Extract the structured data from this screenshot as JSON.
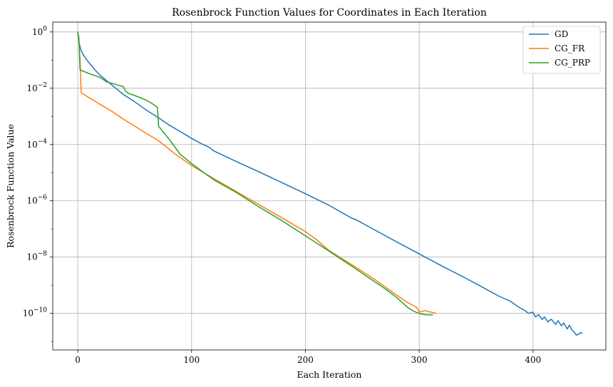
{
  "chart_data": {
    "type": "line",
    "title": "Rosenbrock Function Values for Coordinates in Each Iteration",
    "xlabel": "Each Iteration",
    "ylabel": "Rosenbrock Function Value",
    "xlim": [
      -22,
      464
    ],
    "ylim_exponent": [
      -11.3,
      0.35
    ],
    "yscale": "log",
    "grid": true,
    "legend_position": "top-right",
    "x_ticks": [
      {
        "value": 0,
        "label": "0"
      },
      {
        "value": 100,
        "label": "100"
      },
      {
        "value": 200,
        "label": "200"
      },
      {
        "value": 300,
        "label": "300"
      },
      {
        "value": 400,
        "label": "400"
      }
    ],
    "y_ticks": [
      {
        "exponent": 0,
        "base": "10",
        "sup": "0"
      },
      {
        "exponent": -2,
        "base": "10",
        "sup": "−2"
      },
      {
        "exponent": -4,
        "base": "10",
        "sup": "−4"
      },
      {
        "exponent": -6,
        "base": "10",
        "sup": "−6"
      },
      {
        "exponent": -8,
        "base": "10",
        "sup": "−8"
      },
      {
        "exponent": -10,
        "base": "10",
        "sup": "−10"
      }
    ],
    "series": [
      {
        "name": "GD",
        "color": "#1f77b4",
        "points": [
          [
            0,
            1.0
          ],
          [
            1,
            0.45
          ],
          [
            2,
            0.3
          ],
          [
            3,
            0.22
          ],
          [
            5,
            0.15
          ],
          [
            8,
            0.1
          ],
          [
            10,
            0.08
          ],
          [
            15,
            0.045
          ],
          [
            20,
            0.028
          ],
          [
            30,
            0.013
          ],
          [
            40,
            0.006
          ],
          [
            50,
            0.0033
          ],
          [
            60,
            0.0017
          ],
          [
            70,
            0.00095
          ],
          [
            80,
            0.0005
          ],
          [
            90,
            0.00029
          ],
          [
            100,
            0.000165
          ],
          [
            110,
            0.0001
          ],
          [
            115,
            8.2e-05
          ],
          [
            120,
            5.8e-05
          ],
          [
            140,
            2.4e-05
          ],
          [
            160,
            1.03e-05
          ],
          [
            180,
            4.3e-06
          ],
          [
            200,
            1.78e-06
          ],
          [
            220,
            7.2e-07
          ],
          [
            240,
            2.5e-07
          ],
          [
            245,
            2.08e-07
          ],
          [
            260,
            9.6e-08
          ],
          [
            280,
            3.5e-08
          ],
          [
            300,
            1.3e-08
          ],
          [
            320,
            4.8e-09
          ],
          [
            340,
            1.85e-09
          ],
          [
            360,
            6.8e-10
          ],
          [
            370,
            4.1e-10
          ],
          [
            380,
            2.7e-10
          ],
          [
            388,
            1.6e-10
          ],
          [
            393,
            1.25e-10
          ],
          [
            396,
            1e-10
          ],
          [
            400,
            1.1e-10
          ],
          [
            402,
            7.5e-11
          ],
          [
            405,
            9e-11
          ],
          [
            408,
            6e-11
          ],
          [
            410,
            7.5e-11
          ],
          [
            413,
            5e-11
          ],
          [
            416,
            6.2e-11
          ],
          [
            420,
            4e-11
          ],
          [
            422,
            5.5e-11
          ],
          [
            425,
            3.6e-11
          ],
          [
            427,
            4.6e-11
          ],
          [
            430,
            2.8e-11
          ],
          [
            432,
            3.8e-11
          ],
          [
            434,
            2.6e-11
          ],
          [
            436,
            2.2e-11
          ],
          [
            438,
            1.7e-11
          ],
          [
            440,
            1.8e-11
          ],
          [
            442,
            2.1e-11
          ],
          [
            443,
            1.9e-11
          ]
        ]
      },
      {
        "name": "CG_FR",
        "color": "#ff7f0e",
        "points": [
          [
            0,
            1.0
          ],
          [
            1,
            0.5
          ],
          [
            2,
            0.1
          ],
          [
            3,
            0.007
          ],
          [
            10,
            0.0046
          ],
          [
            20,
            0.0026
          ],
          [
            30,
            0.0015
          ],
          [
            40,
            0.0008
          ],
          [
            50,
            0.00045
          ],
          [
            60,
            0.00025
          ],
          [
            70,
            0.000145
          ],
          [
            80,
            7e-05
          ],
          [
            85,
            4.8e-05
          ],
          [
            90,
            3.4e-05
          ],
          [
            100,
            1.8e-05
          ],
          [
            120,
            6e-06
          ],
          [
            140,
            2.05e-06
          ],
          [
            160,
            7e-07
          ],
          [
            180,
            2.4e-07
          ],
          [
            200,
            8e-08
          ],
          [
            210,
            4.1e-08
          ],
          [
            220,
            1.8e-08
          ],
          [
            240,
            5.6e-09
          ],
          [
            260,
            1.7e-09
          ],
          [
            280,
            4.5e-10
          ],
          [
            290,
            2.4e-10
          ],
          [
            298,
            1.6e-10
          ],
          [
            300,
            1.1e-10
          ],
          [
            305,
            1.25e-10
          ],
          [
            315,
            1e-10
          ]
        ]
      },
      {
        "name": "CG_PRP",
        "color": "#2ca02c",
        "points": [
          [
            0,
            1.0
          ],
          [
            1,
            0.6
          ],
          [
            2,
            0.045
          ],
          [
            5,
            0.04
          ],
          [
            10,
            0.033
          ],
          [
            15,
            0.028
          ],
          [
            20,
            0.024
          ],
          [
            22,
            0.021
          ],
          [
            25,
            0.017
          ],
          [
            30,
            0.015
          ],
          [
            35,
            0.013
          ],
          [
            40,
            0.0115
          ],
          [
            42,
            0.0078
          ],
          [
            45,
            0.0065
          ],
          [
            50,
            0.0055
          ],
          [
            60,
            0.0038
          ],
          [
            65,
            0.0029
          ],
          [
            68,
            0.0024
          ],
          [
            70,
            0.0021
          ],
          [
            71,
            0.00045
          ],
          [
            75,
            0.00028
          ],
          [
            80,
            0.00016
          ],
          [
            85,
            8.5e-05
          ],
          [
            90,
            4.5e-05
          ],
          [
            95,
            3.1e-05
          ],
          [
            100,
            2.1e-05
          ],
          [
            110,
            1.05e-05
          ],
          [
            120,
            5.4e-06
          ],
          [
            140,
            1.9e-06
          ],
          [
            160,
            5.8e-07
          ],
          [
            180,
            1.9e-07
          ],
          [
            200,
            5.7e-08
          ],
          [
            220,
            1.7e-08
          ],
          [
            240,
            5e-09
          ],
          [
            260,
            1.4e-09
          ],
          [
            270,
            7.5e-10
          ],
          [
            280,
            3.7e-10
          ],
          [
            290,
            1.6e-10
          ],
          [
            295,
            1.2e-10
          ],
          [
            300,
            9.8e-11
          ],
          [
            305,
            9e-11
          ],
          [
            312,
            8.8e-11
          ]
        ]
      }
    ]
  }
}
